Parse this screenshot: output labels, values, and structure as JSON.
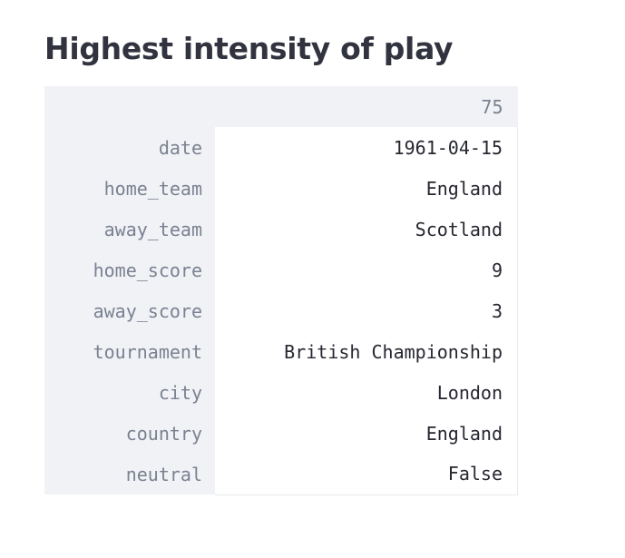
{
  "title": "Highest intensity of play",
  "table": {
    "column_header": "75",
    "rows": [
      {
        "field": "date",
        "value": "1961-04-15"
      },
      {
        "field": "home_team",
        "value": "England"
      },
      {
        "field": "away_team",
        "value": "Scotland"
      },
      {
        "field": "home_score",
        "value": "9"
      },
      {
        "field": "away_score",
        "value": "3"
      },
      {
        "field": "tournament",
        "value": "British Championship"
      },
      {
        "field": "city",
        "value": "London"
      },
      {
        "field": "country",
        "value": "England"
      },
      {
        "field": "neutral",
        "value": "False"
      }
    ]
  },
  "colors": {
    "header_background": "#f0f2f6",
    "index_text": "#7b8191",
    "value_text": "#262730",
    "title_text": "#31333f"
  }
}
